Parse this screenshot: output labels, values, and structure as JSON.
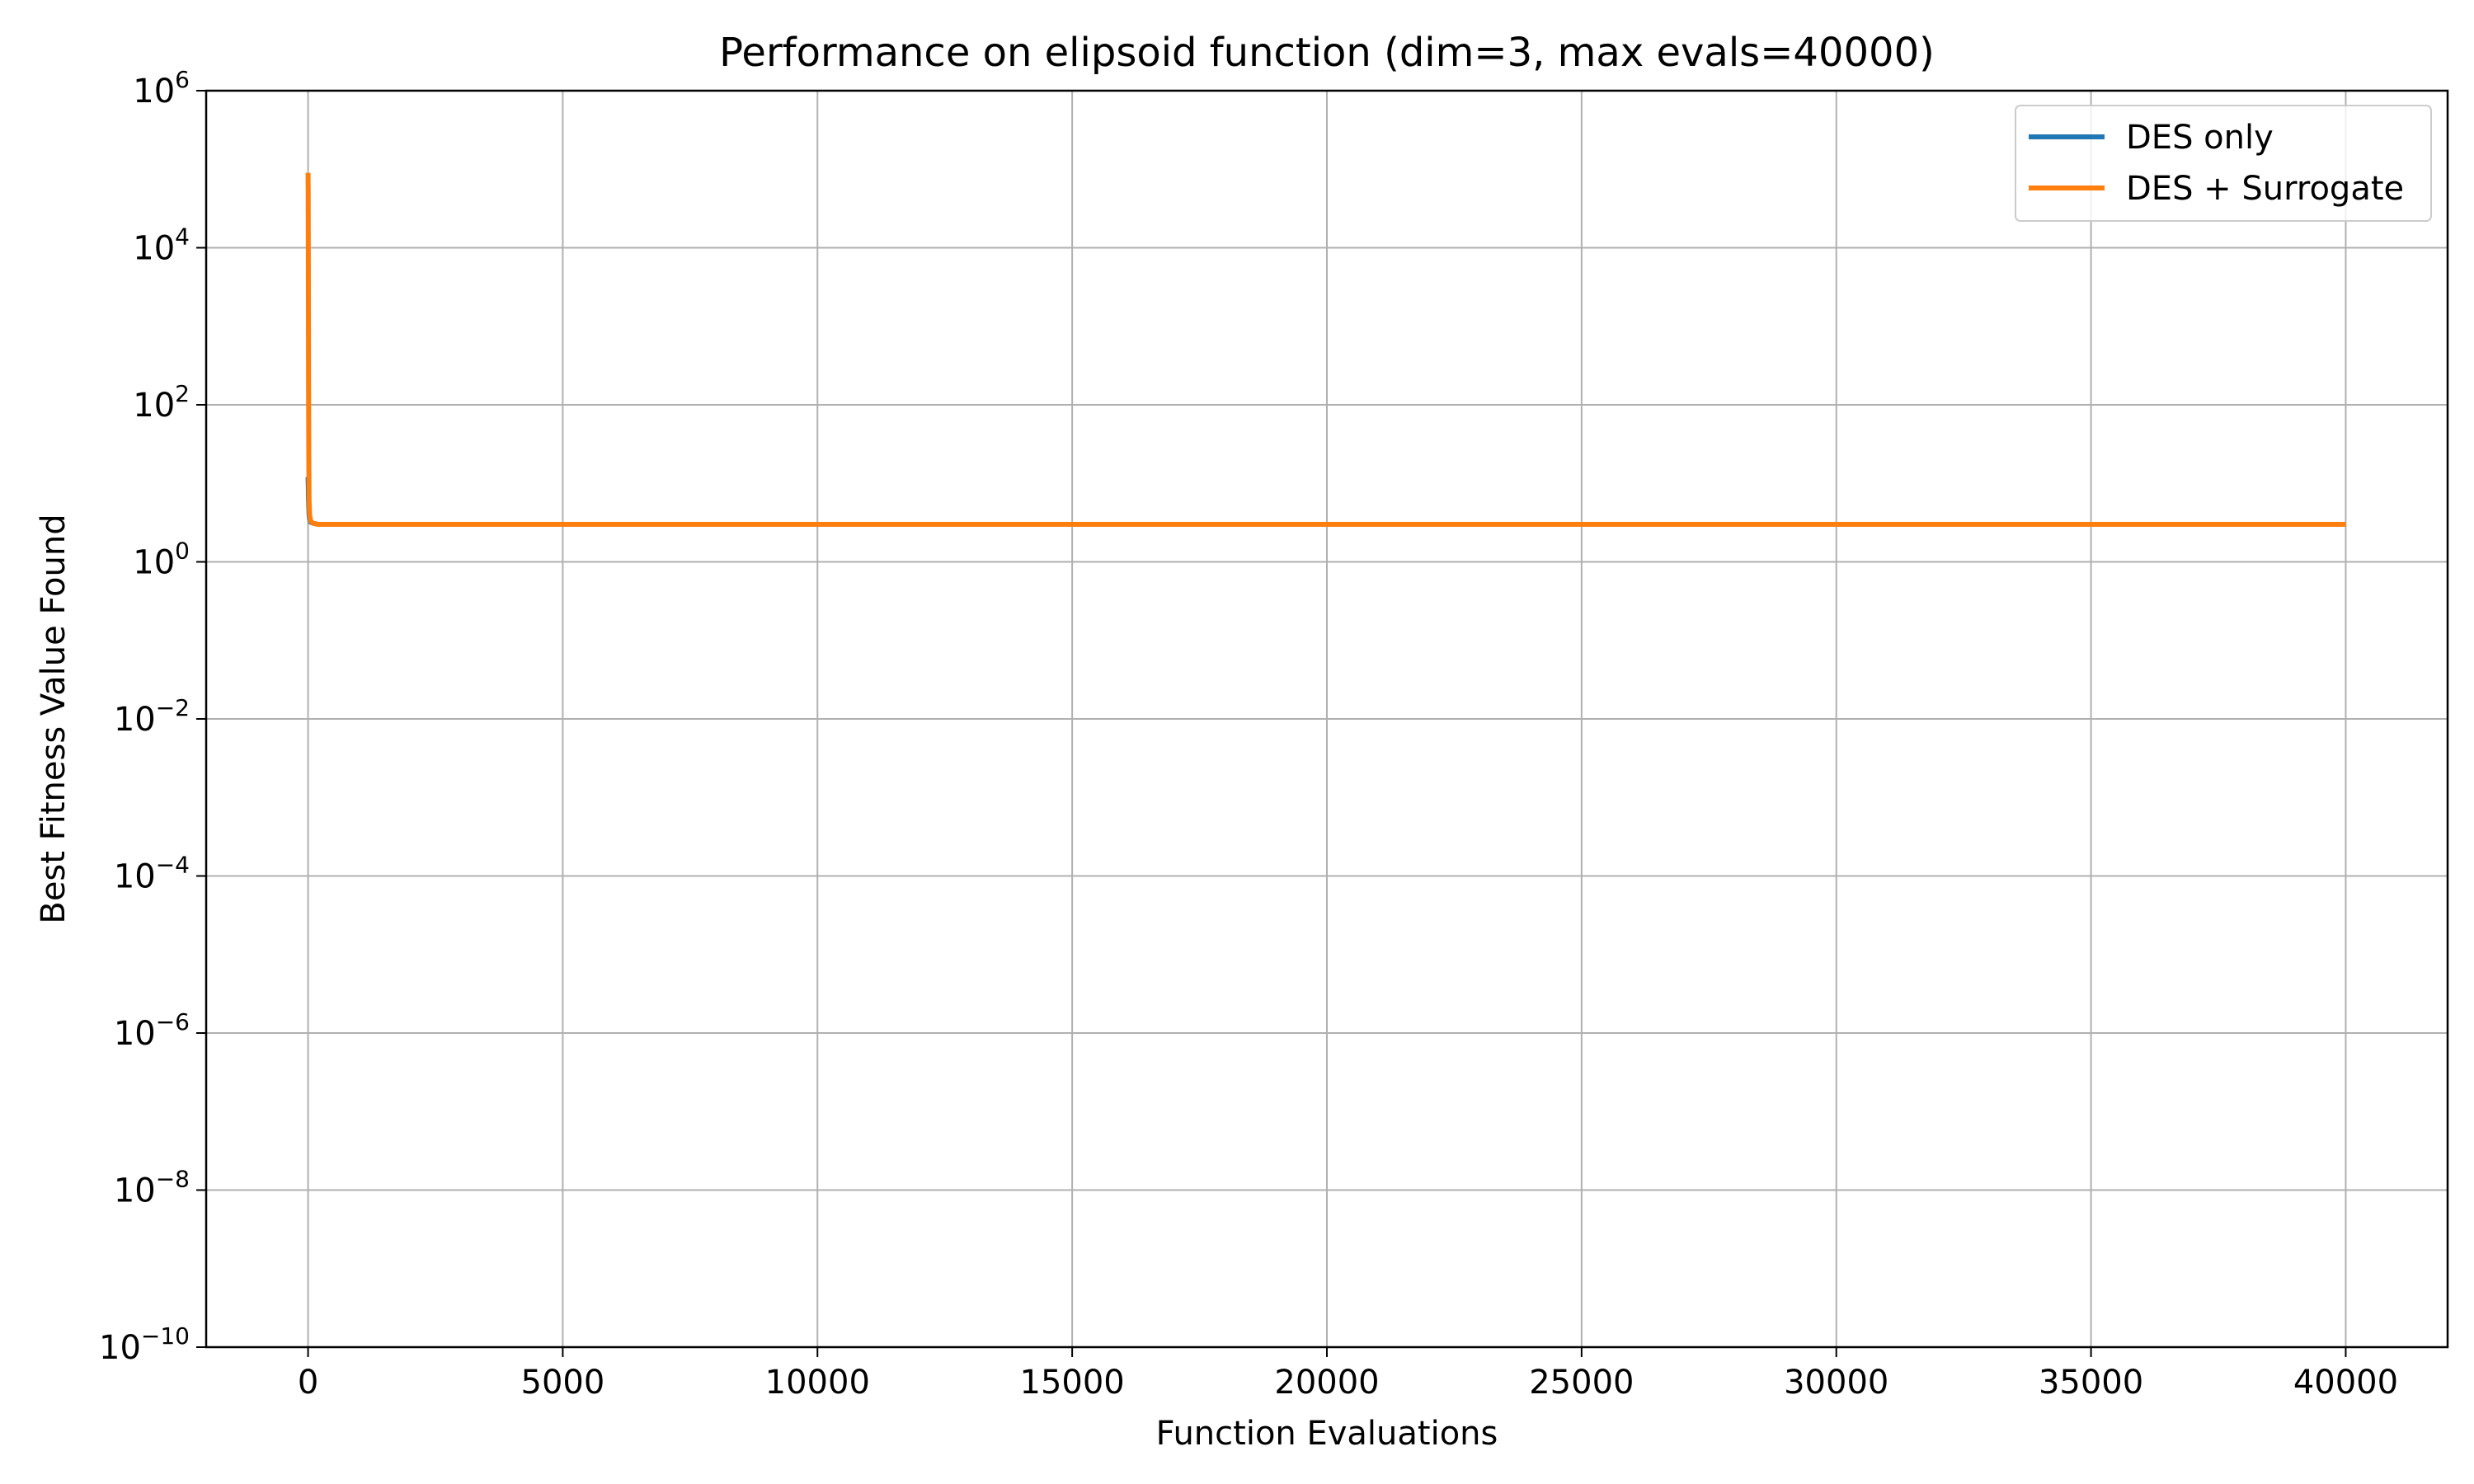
{
  "chart_data": {
    "type": "line",
    "title": "Performance on elipsoid function (dim=3, max evals=40000)",
    "xlabel": "Function Evaluations",
    "ylabel": "Best Fitness Value Found",
    "xlim": [
      -2000,
      42000
    ],
    "ylim": [
      1e-10,
      1000000.0
    ],
    "yscale": "log",
    "grid": true,
    "legend_position": "top-right",
    "x_ticks": [
      0,
      5000,
      10000,
      15000,
      20000,
      25000,
      30000,
      35000,
      40000
    ],
    "x_tick_labels": [
      "0",
      "5000",
      "10000",
      "15000",
      "20000",
      "25000",
      "30000",
      "35000",
      "40000"
    ],
    "y_ticks": [
      {
        "value": 1e-10,
        "base": "10",
        "exp": "−10"
      },
      {
        "value": 1e-08,
        "base": "10",
        "exp": "−8"
      },
      {
        "value": 1e-06,
        "base": "10",
        "exp": "−6"
      },
      {
        "value": 0.0001,
        "base": "10",
        "exp": "−4"
      },
      {
        "value": 0.01,
        "base": "10",
        "exp": "−2"
      },
      {
        "value": 1,
        "base": "10",
        "exp": "0"
      },
      {
        "value": 100,
        "base": "10",
        "exp": "2"
      },
      {
        "value": 10000,
        "base": "10",
        "exp": "4"
      },
      {
        "value": 1000000,
        "base": "10",
        "exp": "6"
      }
    ],
    "series": [
      {
        "name": "DES only",
        "color": "#1f77b4",
        "x": [
          0,
          5,
          10,
          20,
          30,
          50,
          100,
          200,
          1000,
          10000,
          20000,
          30000,
          40000
        ],
        "y": [
          12,
          9,
          6,
          4,
          3.5,
          3.2,
          3.1,
          3.0,
          3.0,
          3.0,
          3.0,
          3.0,
          3.0
        ]
      },
      {
        "name": "DES + Surrogate",
        "color": "#ff7f0e",
        "x": [
          0,
          3,
          6,
          10,
          15,
          20,
          30,
          50,
          100,
          200,
          1000,
          10000,
          20000,
          30000,
          40000
        ],
        "y": [
          90000,
          50000,
          5000,
          200,
          20,
          6,
          4,
          3.3,
          3.1,
          3.0,
          3.0,
          3.0,
          3.0,
          3.0,
          3.0
        ]
      }
    ]
  }
}
